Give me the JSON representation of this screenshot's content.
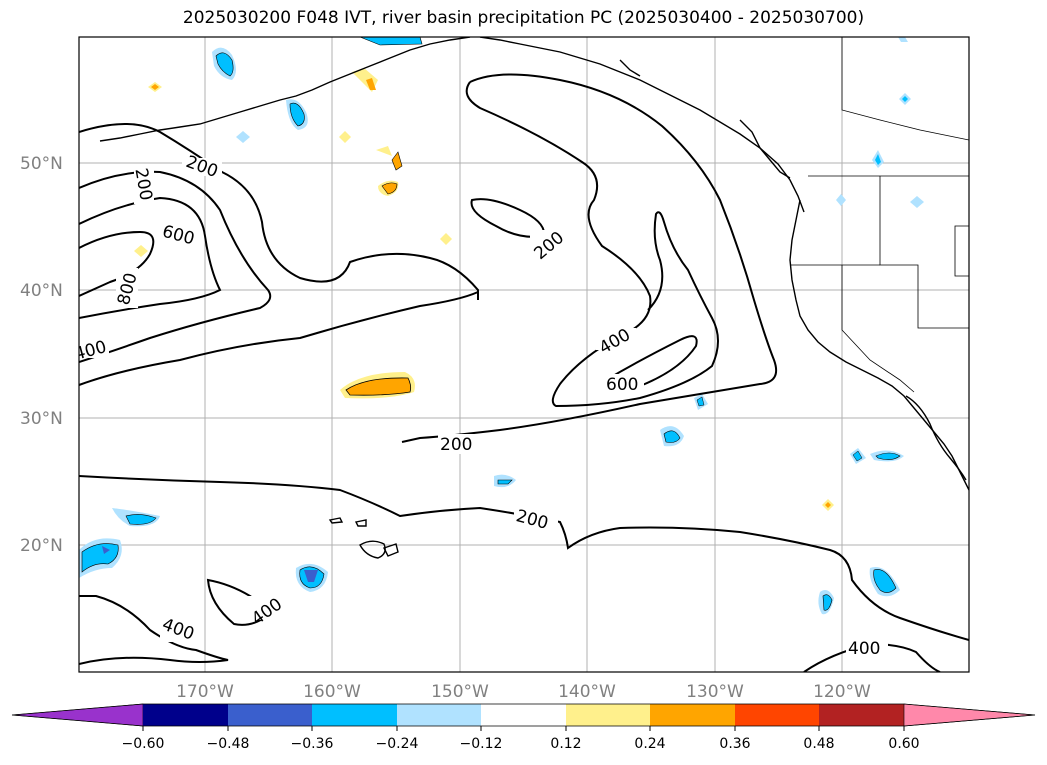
{
  "title": "2025030200 F048 IVT, river basin precipitation PC (2025030400 - 2025030700)",
  "latitude_labels": [
    "50°N",
    "40°N",
    "30°N",
    "20°N"
  ],
  "longitude_labels": [
    "170°W",
    "160°W",
    "150°W",
    "140°W",
    "130°W",
    "120°W"
  ],
  "colorbar": {
    "ticks": [
      "−0.60",
      "−0.48",
      "−0.36",
      "−0.24",
      "−0.12",
      "0.12",
      "0.24",
      "0.36",
      "0.48",
      "0.60"
    ],
    "colors": [
      "#9932cc",
      "#00008b",
      "#3a5fcd",
      "#00bfff",
      "#b0e2ff",
      "#ffffff",
      "#fff08c",
      "#ffa500",
      "#ff4500",
      "#b22222",
      "#ff88aa"
    ]
  },
  "contour_labels": [
    "200",
    "200",
    "600",
    "800",
    "400",
    "200",
    "400",
    "600",
    "200",
    "200",
    "400",
    "400",
    "400"
  ]
}
